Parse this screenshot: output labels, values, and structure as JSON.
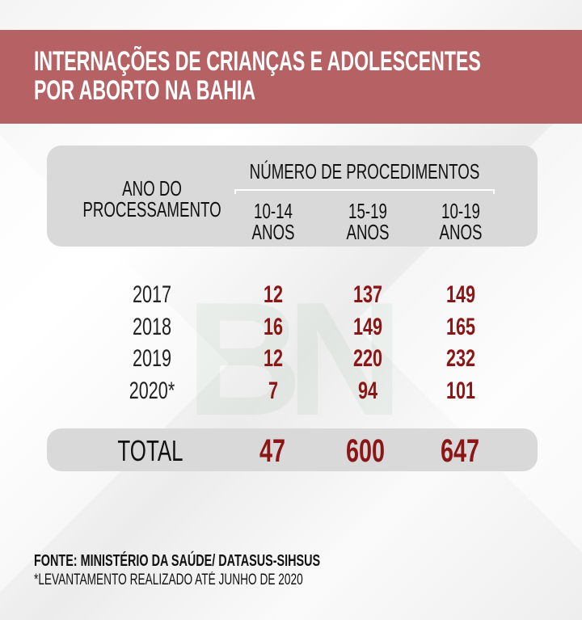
{
  "title": [
    "INTERNAÇÕES DE CRIANÇAS E ADOLESCENTES",
    "POR ABORTO NA BAHIA"
  ],
  "watermark": "BN",
  "colors": {
    "banner": "#b66265",
    "values": "#8b1616",
    "box": "#d9d9d9"
  },
  "chart_data": {
    "type": "table",
    "title": "INTERNAÇÕES DE CRIANÇAS E ADOLESCENTES POR ABORTO NA BAHIA",
    "row_header": [
      "ANO DO",
      "PROCESSAMENTO"
    ],
    "group_header": "NÚMERO DE PROCEDIMENTOS",
    "columns": [
      {
        "line1": "10-14",
        "line2": "ANOS"
      },
      {
        "line1": "15-19",
        "line2": "ANOS"
      },
      {
        "line1": "10-19",
        "line2": "ANOS"
      }
    ],
    "rows": [
      {
        "year": "2017",
        "values": [
          "12",
          "137",
          "149"
        ]
      },
      {
        "year": "2018",
        "values": [
          "16",
          "149",
          "165"
        ]
      },
      {
        "year": "2019",
        "values": [
          "12",
          "220",
          "232"
        ]
      },
      {
        "year": "2020*",
        "values": [
          "7",
          "94",
          "101"
        ]
      }
    ],
    "total": {
      "label": "TOTAL",
      "values": [
        "47",
        "600",
        "647"
      ]
    }
  },
  "footer": {
    "source": "FONTE: MINISTÉRIO DA SAÚDE/ DATASUS-SIHSUS",
    "note": "*LEVANTAMENTO REALIZADO ATÉ JUNHO DE 2020"
  }
}
